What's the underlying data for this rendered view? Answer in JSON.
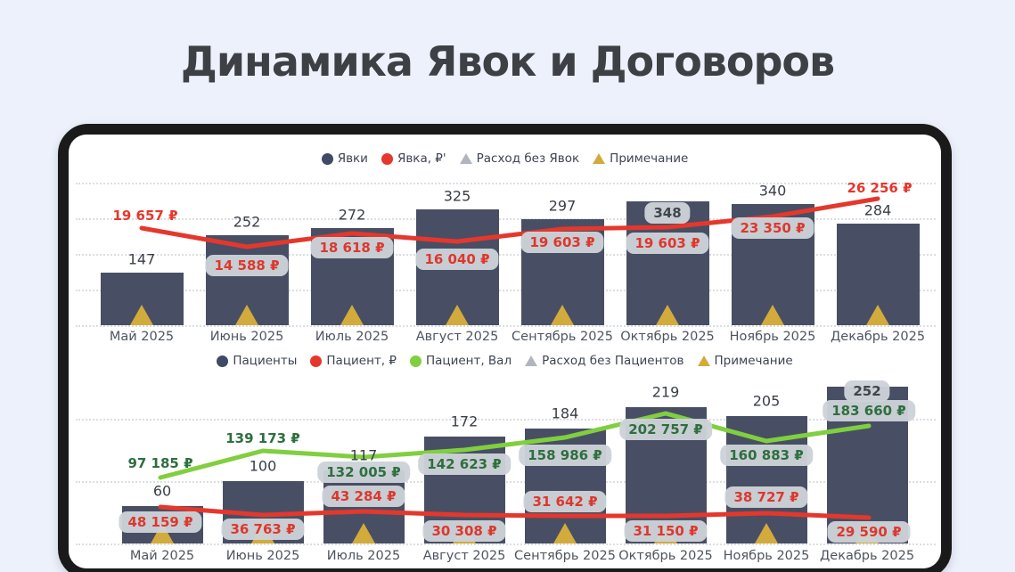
{
  "page": {
    "title": "Динамика Явок и Договоров",
    "background": "#edf1fb",
    "frame_color": "#1a1a1a",
    "card_background": "#ffffff"
  },
  "colors": {
    "bar": "#484f64",
    "red_line": "#e5372c",
    "green_line": "#80cf3f",
    "yellow_note": "#d2ab3c",
    "gray_expense": "#b1b6be",
    "navy_marker": "#3e4a66",
    "pill_background": "#cdd2d9",
    "dark_text": "#3a3f49"
  },
  "chart_data": [
    {
      "type": "bar",
      "title": "",
      "categories": [
        "Май 2025",
        "Июнь 2025",
        "Июль 2025",
        "Август 2025",
        "Сентябрь 2025",
        "Октябрь 2025",
        "Ноябрь 2025",
        "Декабрь 2025"
      ],
      "legend": [
        {
          "label": "Явки",
          "marker": "circle",
          "color": "#3e4a66"
        },
        {
          "label": "Явка, ₽'",
          "marker": "circle",
          "color": "#e5372c"
        },
        {
          "label": "Расход без Явок",
          "marker": "triangle",
          "color": "#b1b6be"
        },
        {
          "label": "Примечание",
          "marker": "triangle",
          "color": "#d2ab3c"
        }
      ],
      "series": [
        {
          "name": "Явки",
          "type": "bar",
          "color": "#484f64",
          "values": [
            147,
            252,
            272,
            325,
            297,
            348,
            340,
            284
          ],
          "labels": [
            "147",
            "252",
            "272",
            "325",
            "297",
            "348",
            "340",
            "284"
          ]
        },
        {
          "name": "Явка, ₽'",
          "type": "line",
          "color": "#e5372c",
          "label_color": "#dd382c",
          "values": [
            19657,
            14588,
            18618,
            16040,
            19603,
            19603,
            23350,
            26256
          ],
          "labels": [
            "19 657 ₽",
            "14 588 ₽",
            "18 618 ₽",
            "16 040 ₽",
            "19 603 ₽",
            "19 603 ₽",
            "23 350 ₽",
            "26 256 ₽"
          ]
        }
      ],
      "ylim": [
        0,
        400
      ],
      "gridlines_every": 100,
      "grid": "horizontal-dotted",
      "note_markers": "жёлтый треугольник у основания каждого столбца"
    },
    {
      "type": "bar",
      "title": "",
      "categories": [
        "Май 2025",
        "Июнь 2025",
        "Июль 2025",
        "Август 2025",
        "Сентябрь 2025",
        "Октябрь 2025",
        "Ноябрь 2025",
        "Декабрь 2025"
      ],
      "legend": [
        {
          "label": "Пациенты",
          "marker": "circle",
          "color": "#3e4a66"
        },
        {
          "label": "Пациент, ₽",
          "marker": "circle",
          "color": "#e5372c"
        },
        {
          "label": "Пациент, Вал",
          "marker": "circle",
          "color": "#80cf3f"
        },
        {
          "label": "Расход без Пациентов",
          "marker": "triangle",
          "color": "#b1b6be"
        },
        {
          "label": "Примечание",
          "marker": "triangle",
          "color": "#d2ab3c"
        }
      ],
      "series": [
        {
          "name": "Пациенты",
          "type": "bar",
          "color": "#484f64",
          "values": [
            60,
            100,
            117,
            172,
            184,
            219,
            205,
            252
          ],
          "labels": [
            "60",
            "100",
            "117",
            "172",
            "184",
            "219",
            "205",
            "252"
          ]
        },
        {
          "name": "Пациент, Вал",
          "type": "line",
          "color": "#80cf3f",
          "label_color": "#2e6f3e",
          "values": [
            97185,
            139173,
            132005,
            142623,
            158986,
            202757,
            160883,
            183660
          ],
          "labels": [
            "97 185 ₽",
            "139 173 ₽",
            "132 005 ₽",
            "142 623 ₽",
            "158 986 ₽",
            "202 757 ₽",
            "160 883 ₽",
            "183 660 ₽"
          ]
        },
        {
          "name": "Пациент, ₽",
          "type": "line",
          "color": "#e5372c",
          "label_color": "#dd382c",
          "values": [
            48159,
            36763,
            43284,
            30308,
            31642,
            31150,
            38727,
            29590
          ],
          "labels": [
            "48 159 ₽",
            "36 763 ₽",
            "43 284 ₽",
            "30 308 ₽",
            "31 642 ₽",
            "31 150 ₽",
            "38 727 ₽",
            "29 590 ₽"
          ]
        }
      ],
      "ylim": [
        0,
        260
      ],
      "gridlines_every": 100,
      "grid": "horizontal-dotted",
      "note_markers": "жёлтый треугольник у основания каждого столбца"
    }
  ]
}
